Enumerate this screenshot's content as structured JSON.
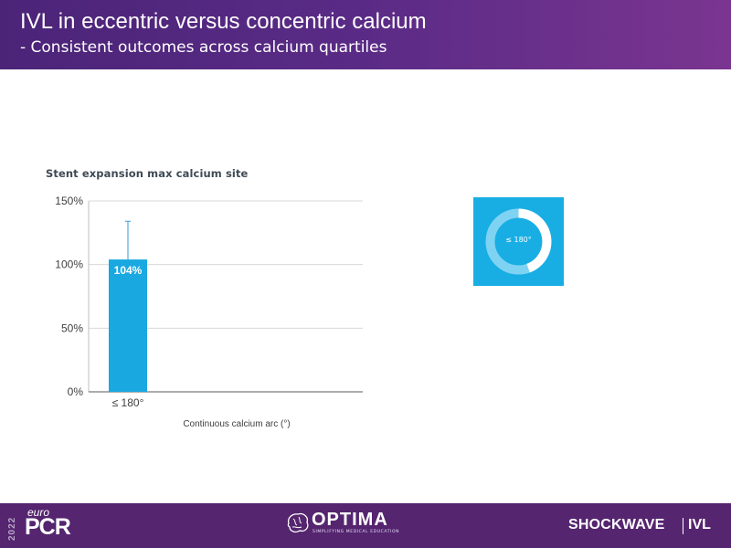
{
  "header": {
    "title": "IVL in eccentric versus concentric calcium",
    "subtitle": "- Consistent outcomes across calcium quartiles"
  },
  "chart_data": {
    "type": "bar",
    "title": "Stent expansion  max calcium  site",
    "xlabel": "Continuous calcium arc (°)",
    "ylabel": "",
    "categories": [
      "≤ 180°"
    ],
    "values": [
      104
    ],
    "value_labels": [
      "104%"
    ],
    "error_upper": [
      134
    ],
    "ylim": [
      0,
      150
    ],
    "yticks": [
      0,
      50,
      100,
      150
    ],
    "ytick_labels": [
      "0%",
      "50%",
      "100%",
      "150%"
    ],
    "grid": true,
    "bar_color": "#19a8e0"
  },
  "donut": {
    "label": "≤ 180°",
    "box_color": "#18aee4"
  },
  "footer": {
    "year": "2022",
    "euro": "euro",
    "pcr": "PCR",
    "optima_name": "OPTIMA",
    "optima_tagline": "SIMPLIFYING MEDICAL EDUCATION",
    "shockwave": "SHOCKWAVE",
    "ivl": "IVL"
  },
  "colors": {
    "header_start": "#4b2478",
    "header_end": "#7a3590",
    "footer": "#55256f",
    "accent": "#18aee4"
  }
}
